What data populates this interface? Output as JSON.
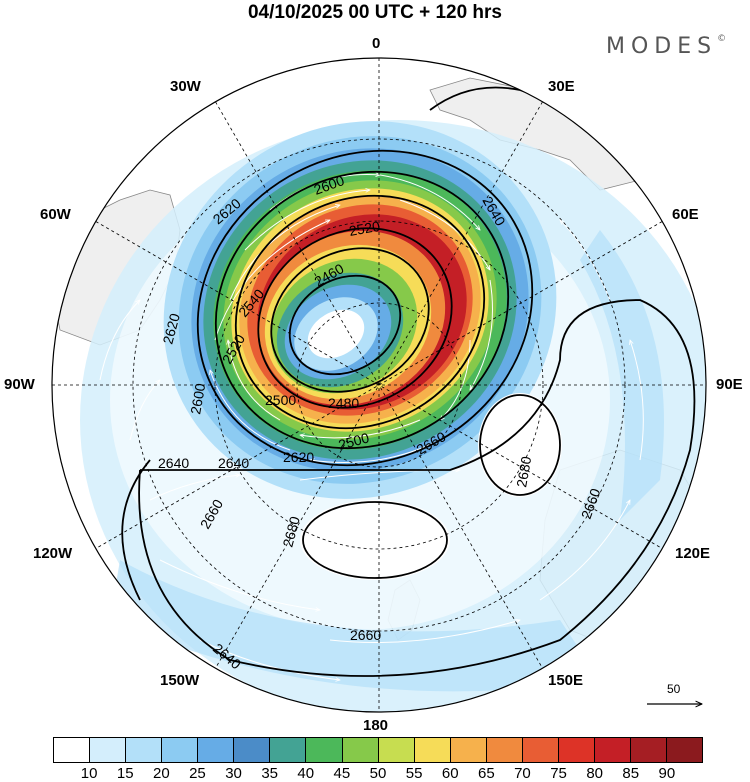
{
  "header": {
    "title": "04/10/2025  00 UTC  + 120 hrs",
    "brand": "MODES",
    "brand_mark": "©"
  },
  "longitude_labels": {
    "lon_0": "0",
    "lon_30e": "30E",
    "lon_60e": "60E",
    "lon_90e": "90E",
    "lon_120e": "120E",
    "lon_150e": "150E",
    "lon_180": "180",
    "lon_150w": "150W",
    "lon_120w": "120W",
    "lon_90w": "90W",
    "lon_60w": "60W",
    "lon_30w": "30W"
  },
  "contours": {
    "labels": [
      "2460",
      "2480",
      "2500",
      "2500",
      "2520",
      "2520",
      "2540",
      "2600",
      "2600",
      "2620",
      "2620",
      "2620",
      "2640",
      "2640",
      "2640",
      "2640",
      "2660",
      "2660",
      "2660",
      "2660",
      "2680",
      "2680"
    ],
    "interval": 20,
    "unit_hint": "geopotential height"
  },
  "wind": {
    "reference_vector_label": "50"
  },
  "colorbar": {
    "tick_labels": [
      "10",
      "15",
      "20",
      "25",
      "30",
      "35",
      "40",
      "45",
      "50",
      "55",
      "60",
      "65",
      "70",
      "75",
      "80",
      "85",
      "90"
    ],
    "colors": [
      "#ffffff",
      "#d4eefc",
      "#b3e0f9",
      "#8ccbf2",
      "#66ace6",
      "#4b8cc8",
      "#43a394",
      "#4cb85a",
      "#86c94a",
      "#c7dd50",
      "#f6dc58",
      "#f6b14c",
      "#f08a3e",
      "#e85d34",
      "#dd3327",
      "#c41f26",
      "#a51e23",
      "#8b1a1e"
    ]
  },
  "colors": {
    "land": "#efefef",
    "coast": "#888888",
    "contour": "#000000",
    "grid": "#000000"
  }
}
